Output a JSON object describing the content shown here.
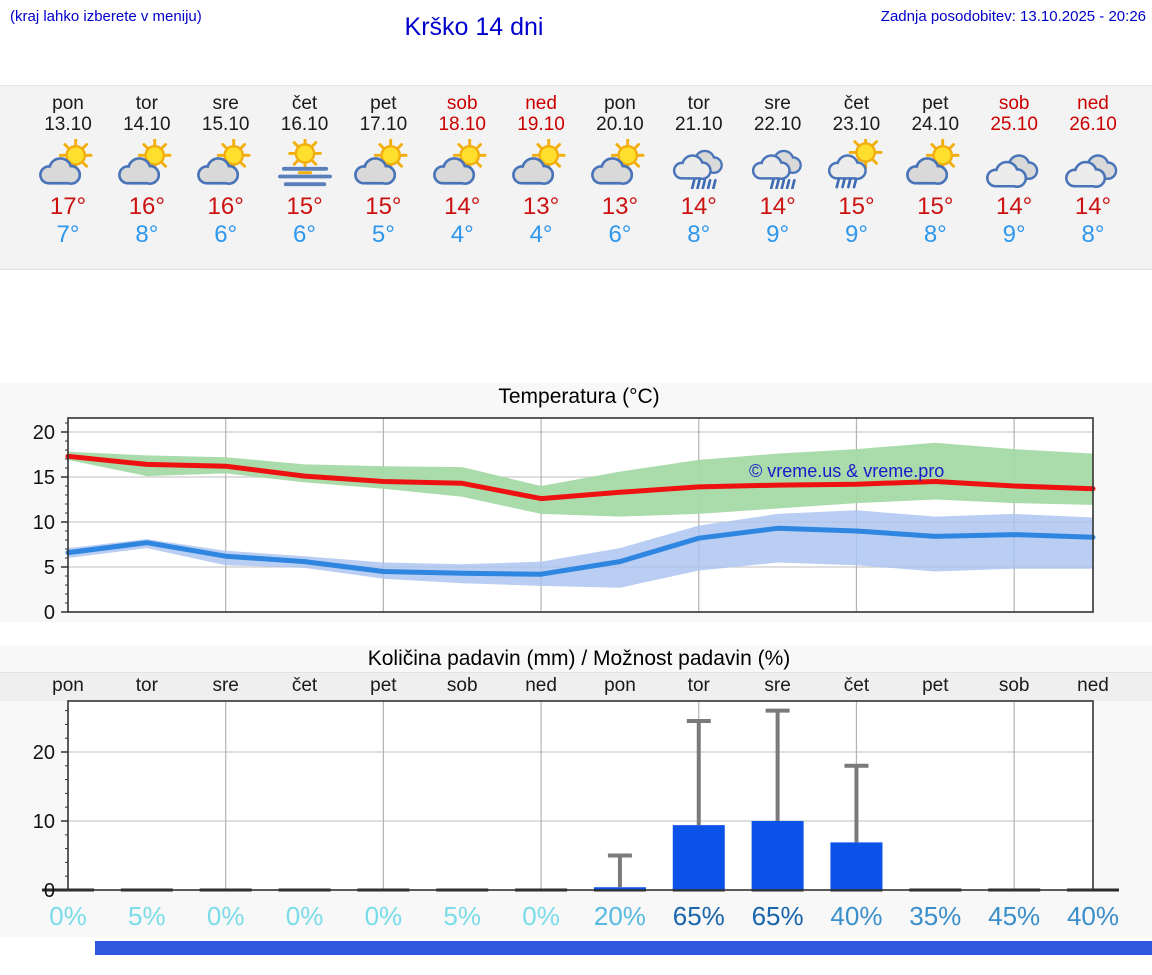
{
  "header": {
    "hint": "(kraj lahko izberete v meniju)",
    "title": "Krško 14 dni",
    "updated": "Zadnja posodobitev: 13.10.2025 - 20:26"
  },
  "watermark": "© vreme.us & vreme.pro",
  "colors": {
    "link_blue": "#0000cc",
    "weekday_text": "#1a1a1a",
    "weekend_text": "#cc0000",
    "temp_max_text": "#cc1111",
    "temp_min_text": "#2e97ee",
    "temp_max_line": "#ee1111",
    "temp_max_band": "#a5d9a5",
    "temp_min_line": "#2e86e0",
    "temp_min_band": "#a9c3ef",
    "precip_bar": "#0b52e8",
    "whisker": "#7a7a7a",
    "footer_bar": "#2d58dd"
  },
  "forecast": {
    "days": [
      {
        "name": "pon",
        "date": "13.10",
        "weekend": false,
        "icon": "sun-cloud",
        "tmax": "17°",
        "tmin": "7°"
      },
      {
        "name": "tor",
        "date": "14.10",
        "weekend": false,
        "icon": "sun-cloud",
        "tmax": "16°",
        "tmin": "8°"
      },
      {
        "name": "sre",
        "date": "15.10",
        "weekend": false,
        "icon": "sun-cloud",
        "tmax": "16°",
        "tmin": "6°"
      },
      {
        "name": "čet",
        "date": "16.10",
        "weekend": false,
        "icon": "fog-sun",
        "tmax": "15°",
        "tmin": "6°"
      },
      {
        "name": "pet",
        "date": "17.10",
        "weekend": false,
        "icon": "sun-cloud",
        "tmax": "15°",
        "tmin": "5°"
      },
      {
        "name": "sob",
        "date": "18.10",
        "weekend": true,
        "icon": "sun-cloud",
        "tmax": "14°",
        "tmin": "4°"
      },
      {
        "name": "ned",
        "date": "19.10",
        "weekend": true,
        "icon": "sun-cloud",
        "tmax": "13°",
        "tmin": "4°"
      },
      {
        "name": "pon",
        "date": "20.10",
        "weekend": false,
        "icon": "sun-cloud",
        "tmax": "13°",
        "tmin": "6°"
      },
      {
        "name": "tor",
        "date": "21.10",
        "weekend": false,
        "icon": "rain",
        "tmax": "14°",
        "tmin": "8°"
      },
      {
        "name": "sre",
        "date": "22.10",
        "weekend": false,
        "icon": "rain",
        "tmax": "14°",
        "tmin": "9°"
      },
      {
        "name": "čet",
        "date": "23.10",
        "weekend": false,
        "icon": "sun-rain",
        "tmax": "15°",
        "tmin": "9°"
      },
      {
        "name": "pet",
        "date": "24.10",
        "weekend": false,
        "icon": "sun-cloud",
        "tmax": "15°",
        "tmin": "8°"
      },
      {
        "name": "sob",
        "date": "25.10",
        "weekend": true,
        "icon": "cloudy",
        "tmax": "14°",
        "tmin": "9°"
      },
      {
        "name": "ned",
        "date": "26.10",
        "weekend": true,
        "icon": "cloudy",
        "tmax": "14°",
        "tmin": "8°"
      }
    ]
  },
  "chart_data": [
    {
      "type": "line",
      "title": "Temperatura (°C)",
      "x": [
        "13.10",
        "14.10",
        "15.10",
        "16.10",
        "17.10",
        "18.10",
        "19.10",
        "20.10",
        "21.10",
        "22.10",
        "23.10",
        "24.10",
        "25.10",
        "26.10"
      ],
      "ylim": [
        0,
        21.5
      ],
      "yticks": [
        0,
        5,
        10,
        15,
        20
      ],
      "grid": true,
      "legend_position": "none",
      "series": [
        {
          "name": "max temperatura",
          "color": "#ee1111",
          "values": [
            17.3,
            16.4,
            16.2,
            15.1,
            14.5,
            14.3,
            12.6,
            13.3,
            13.9,
            14.1,
            14.2,
            14.5,
            14.0,
            13.7
          ],
          "band_high": [
            17.8,
            17.4,
            17.2,
            16.4,
            16.2,
            16.1,
            14.0,
            15.6,
            16.9,
            17.6,
            18.1,
            18.8,
            18.1,
            17.6
          ],
          "band_low": [
            16.9,
            15.1,
            15.4,
            14.4,
            13.7,
            12.8,
            10.9,
            10.6,
            10.9,
            11.5,
            12.1,
            12.5,
            12.1,
            11.9
          ],
          "band_color": "#a5d9a5"
        },
        {
          "name": "min temperatura",
          "color": "#2e86e0",
          "values": [
            6.6,
            7.7,
            6.2,
            5.6,
            4.5,
            4.3,
            4.2,
            5.6,
            8.2,
            9.3,
            9.0,
            8.4,
            8.6,
            8.3
          ],
          "band_high": [
            7.1,
            8.1,
            6.8,
            6.2,
            5.5,
            5.3,
            5.6,
            7.1,
            9.6,
            10.9,
            11.3,
            10.6,
            10.9,
            10.5
          ],
          "band_low": [
            6.0,
            7.1,
            5.2,
            4.9,
            3.7,
            3.2,
            2.9,
            2.7,
            4.6,
            5.5,
            5.2,
            4.5,
            4.8,
            4.8
          ],
          "band_color": "#a9c3ef"
        }
      ]
    },
    {
      "type": "bar",
      "title": "Količina padavin (mm) / Možnost padavin (%)",
      "day_labels": [
        "pon",
        "tor",
        "sre",
        "čet",
        "pet",
        "sob",
        "ned",
        "pon",
        "tor",
        "sre",
        "čet",
        "pet",
        "sob",
        "ned"
      ],
      "ylim": [
        0,
        27
      ],
      "yticks": [
        0,
        10,
        20
      ],
      "grid": true,
      "precip_mm": [
        0.1,
        0.1,
        0.1,
        0.1,
        0.1,
        0.1,
        0.1,
        0.4,
        9.4,
        10.0,
        6.9,
        0.1,
        0.1,
        0.1
      ],
      "whisker_max_mm": [
        0,
        0,
        0,
        0,
        0,
        0,
        0,
        5,
        24.5,
        26,
        18,
        0,
        0,
        0
      ],
      "probability": [
        "0%",
        "5%",
        "0%",
        "0%",
        "0%",
        "5%",
        "0%",
        "20%",
        "65%",
        "65%",
        "40%",
        "35%",
        "45%",
        "40%"
      ],
      "probability_colors": [
        "#79dce8",
        "#79dce8",
        "#79dce8",
        "#79dce8",
        "#79dce8",
        "#79dce8",
        "#79dce8",
        "#58b9e2",
        "#1a64ab",
        "#1a64ab",
        "#3a8fcb",
        "#3a8fcb",
        "#3a8fcb",
        "#3a8fcb"
      ]
    }
  ]
}
